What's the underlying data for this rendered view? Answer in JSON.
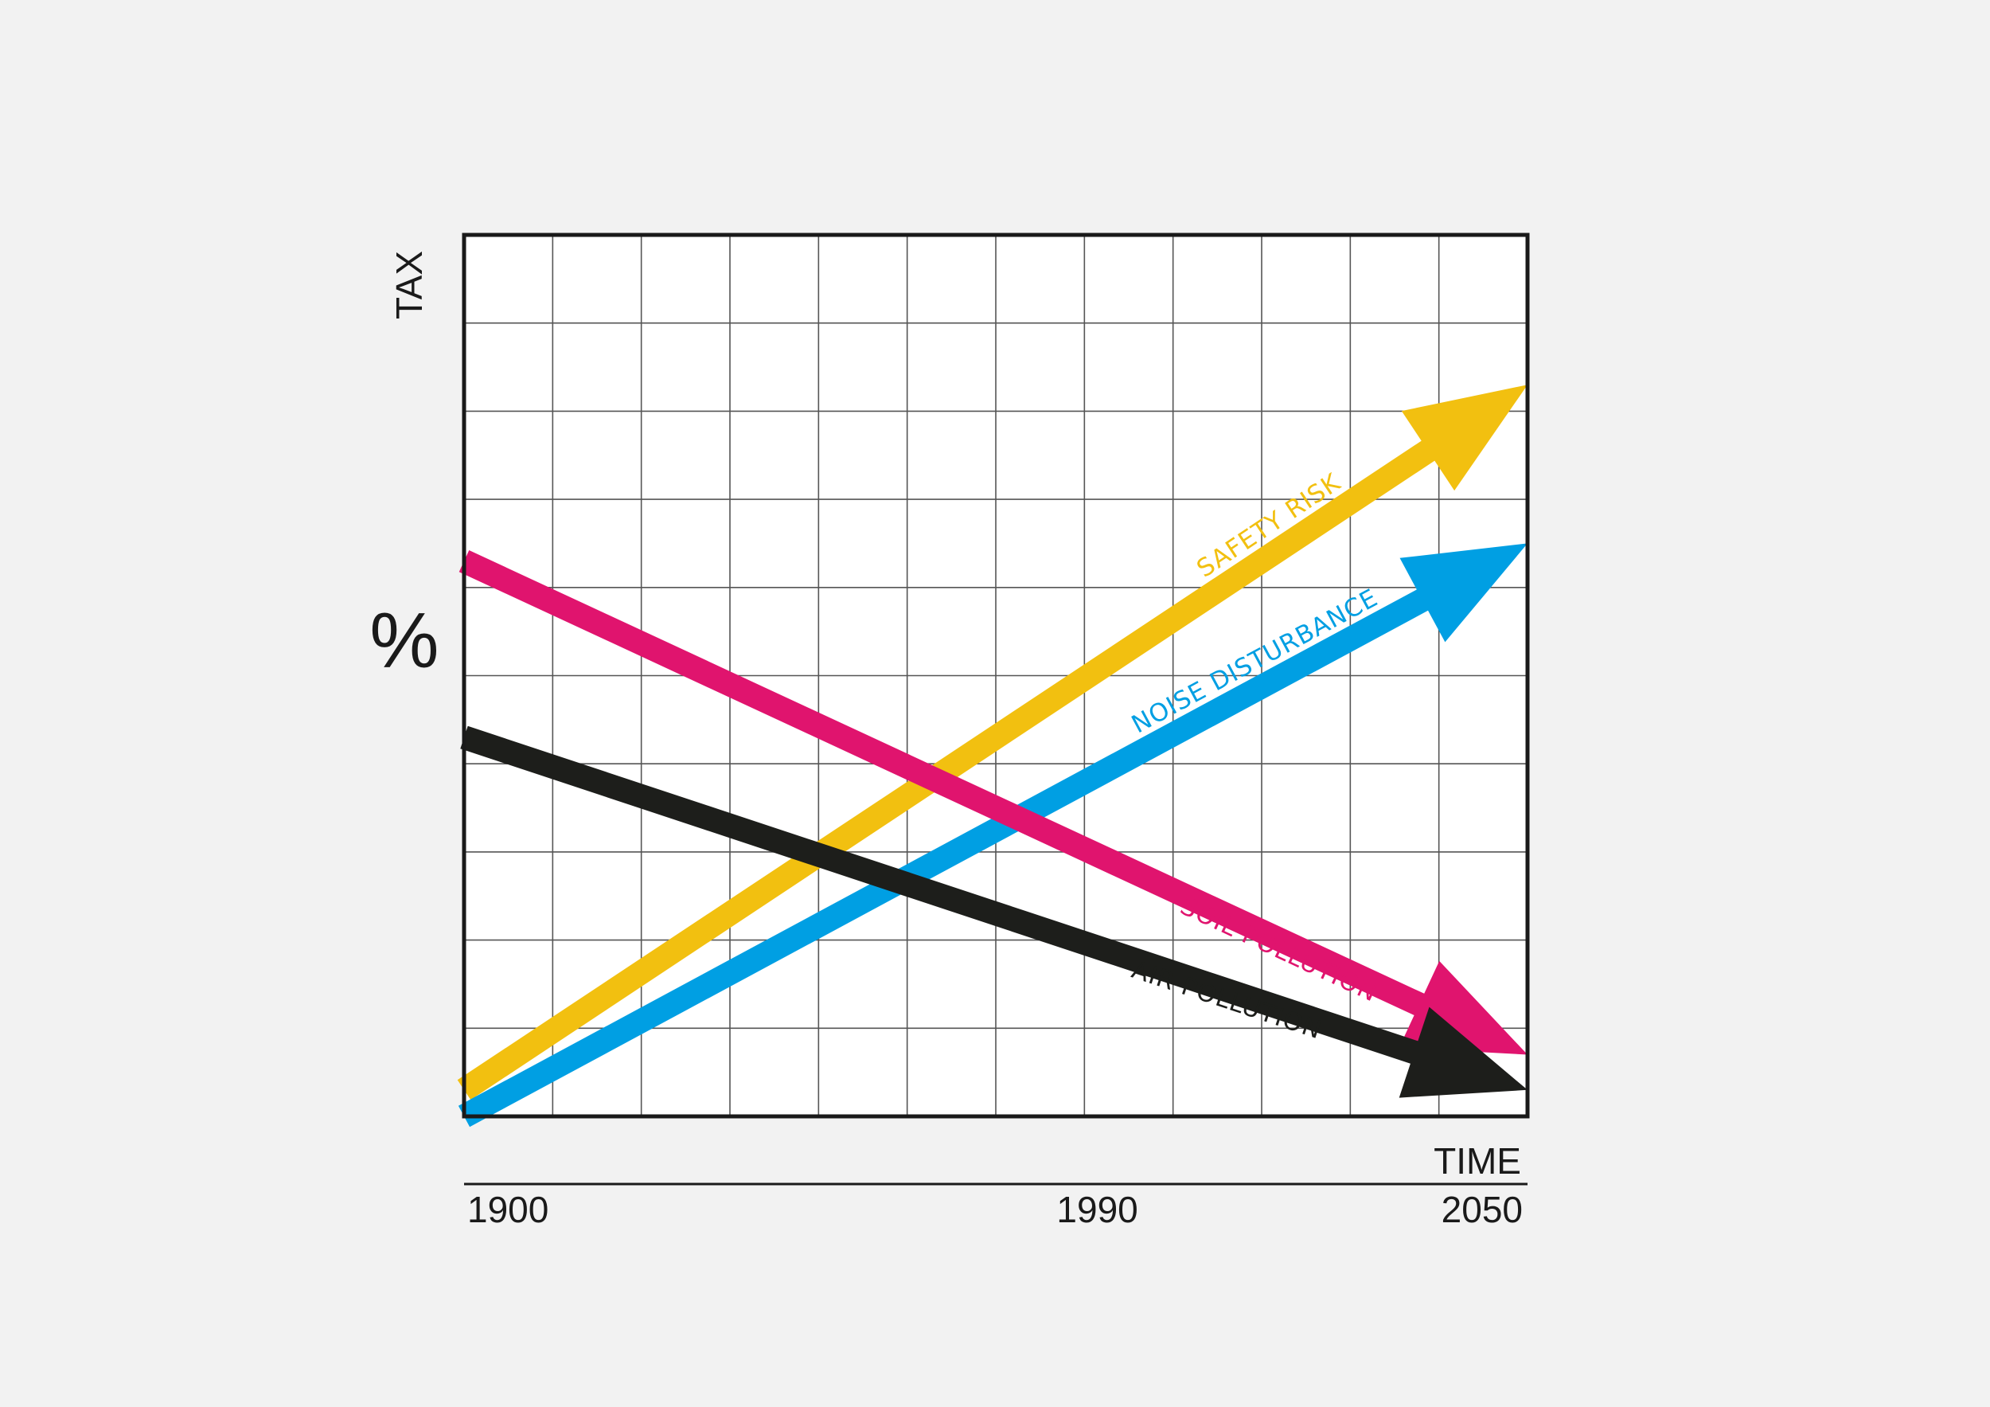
{
  "colors": {
    "background": "#f2f2f2",
    "plot_background": "#ffffff",
    "grid": "#555555",
    "frame": "#1a1a1a",
    "safety_risk": "#f2c010",
    "noise_disturbance": "#009fe3",
    "soil_pollution": "#e0146e",
    "air_pollution": "#1d1e1b"
  },
  "chart_data": {
    "type": "line",
    "title": "",
    "xlabel": "TIME",
    "ylabel": "TAX",
    "yunit": "%",
    "x_ticks": [
      1900,
      1990,
      2050
    ],
    "xlim": [
      1900,
      2050
    ],
    "ylim": [
      0,
      100
    ],
    "grid": true,
    "series": [
      {
        "name": "SAFETY RISK",
        "color_key": "safety_risk",
        "x": [
          1900,
          2050
        ],
        "y": [
          3,
          83
        ]
      },
      {
        "name": "NOISE DISTURBANCE",
        "color_key": "noise_disturbance",
        "x": [
          1900,
          2050
        ],
        "y": [
          0,
          65
        ]
      },
      {
        "name": "SOIL POLLUTION",
        "color_key": "soil_pollution",
        "x": [
          1900,
          2050
        ],
        "y": [
          63,
          7
        ]
      },
      {
        "name": "AIR POLLUTION",
        "color_key": "air_pollution",
        "x": [
          1900,
          2050
        ],
        "y": [
          43,
          3
        ]
      }
    ]
  }
}
